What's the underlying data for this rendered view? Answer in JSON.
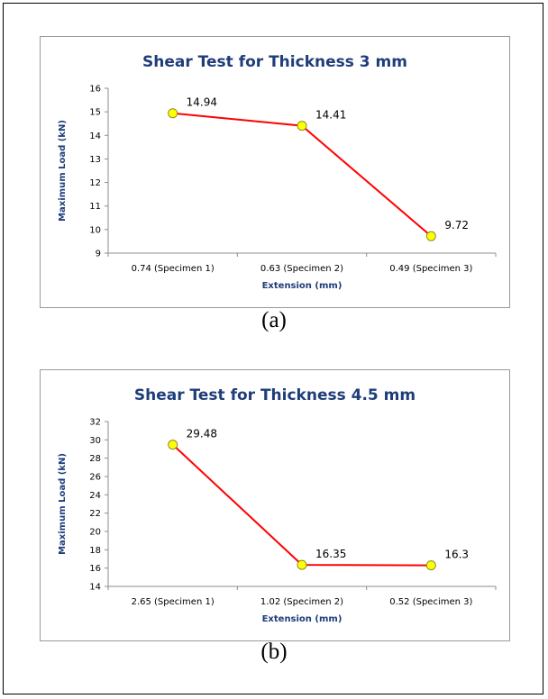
{
  "chart_data": [
    {
      "type": "line",
      "title": "Shear Test for Thickness 3 mm",
      "xlabel": "Extension (mm)",
      "ylabel": "Maximum Load (kN)",
      "categories": [
        "0.74 (Specimen 1)",
        "0.63 (Specimen 2)",
        "0.49 (Specimen 3)"
      ],
      "values": [
        14.94,
        14.41,
        9.72
      ],
      "data_labels": [
        "14.94",
        "14.41",
        "9.72"
      ],
      "ylim": [
        9,
        16
      ],
      "yticks": [
        9,
        10,
        11,
        12,
        13,
        14,
        15,
        16
      ],
      "grid": false,
      "line_color": "#ff0000",
      "marker_color": "#ffff00",
      "marker_edge": "#8a8a2a",
      "title_color": "#1f3d7a",
      "caption": "(a)"
    },
    {
      "type": "line",
      "title": "Shear Test for Thickness 4.5 mm",
      "xlabel": "Extension (mm)",
      "ylabel": "Maximum Load (kN)",
      "categories": [
        "2.65 (Specimen 1)",
        "1.02 (Specimen 2)",
        "0.52 (Specimen 3)"
      ],
      "values": [
        29.48,
        16.35,
        16.3
      ],
      "data_labels": [
        "29.48",
        "16.35",
        "16.3"
      ],
      "ylim": [
        14,
        32
      ],
      "yticks": [
        14,
        16,
        18,
        20,
        22,
        24,
        26,
        28,
        30,
        32
      ],
      "grid": false,
      "line_color": "#ff0000",
      "marker_color": "#ffff00",
      "marker_edge": "#8a8a2a",
      "title_color": "#1f3d7a",
      "caption": "(b)"
    }
  ]
}
